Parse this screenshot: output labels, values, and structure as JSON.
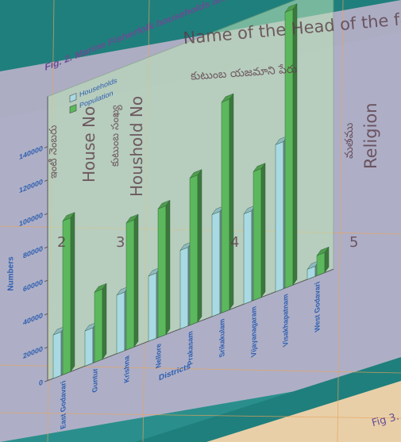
{
  "chart_data": {
    "type": "bar3d",
    "title": "Fig. 2. Marine Fisherfolk households and population",
    "x_label": "Districts",
    "y_label": "Numbers",
    "categories": [
      "East Godavari",
      "Guntur",
      "Krishna",
      "Nellore",
      "Prakasam",
      "Srikakulam",
      "Vijayanagaram",
      "Visakhapatnam",
      "West Godavari"
    ],
    "series": [
      {
        "name": "Households",
        "color": "#a9d9e3",
        "values": [
          26000,
          21000,
          35000,
          39000,
          47000,
          61000,
          54000,
          88000,
          6000
        ]
      },
      {
        "name": "Population",
        "color": "#5cb85c",
        "values": [
          92000,
          42000,
          76000,
          77000,
          88000,
          126000,
          77000,
          165000,
          12000
        ]
      }
    ],
    "ylim": [
      0,
      170000
    ],
    "yticks": [
      0,
      20000,
      40000,
      60000,
      80000,
      100000,
      120000,
      140000
    ],
    "legend": "upper left"
  },
  "form": {
    "head_en": "Name of the Head of the family",
    "head_te": "కుటుంబ యజమాని పేరు",
    "house_te": "ఇంటి నెంబరు",
    "house_en": "House No",
    "household_te": "కుటుంబ సంఖ్య",
    "household_en": "Houshold No",
    "religion_te": "మతము",
    "religion_en": "Religion",
    "col_numbers": [
      "2",
      "3",
      "4",
      "5"
    ],
    "fig": "Fig 3."
  }
}
